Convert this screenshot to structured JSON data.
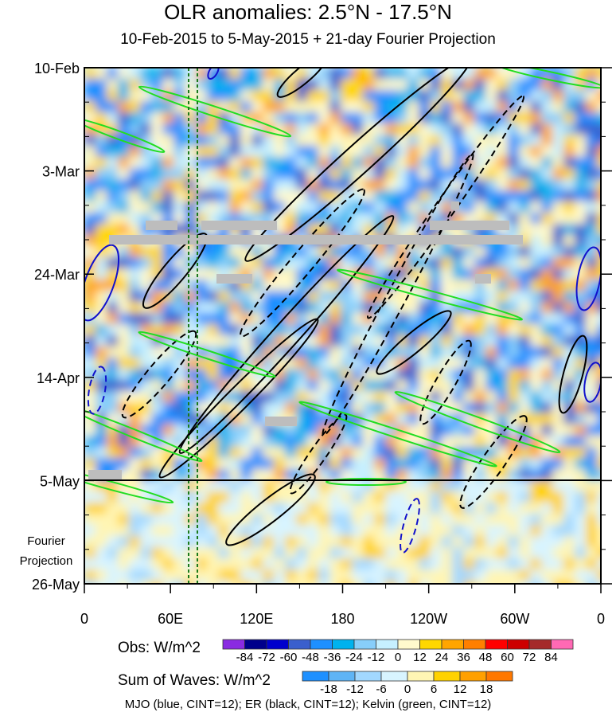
{
  "chart_data": {
    "type": "heatmap",
    "title": "OLR anomalies: 2.5°N - 17.5°N",
    "subtitle": "10-Feb-2015 to 5-May-2015 + 21-day Fourier Projection",
    "y_ticks": [
      "10-Feb",
      "3-Mar",
      "24-Mar",
      "14-Apr",
      "5-May",
      "26-May"
    ],
    "y_annotation_lines": [
      "Fourier",
      "Projection"
    ],
    "x_ticks": [
      "0",
      "60E",
      "120E",
      "180",
      "120W",
      "60W",
      "0"
    ],
    "x_range_deg_east": [
      0,
      360
    ],
    "time_range_days": [
      0,
      105
    ],
    "observation_end": "5-May",
    "obs_colorbar": {
      "title": "Obs: W/m^2",
      "levels": [
        "-84",
        "-72",
        "-60",
        "-48",
        "-36",
        "-24",
        "-12",
        "0",
        "12",
        "24",
        "36",
        "48",
        "60",
        "72",
        "84"
      ],
      "colors": [
        "#8a2be2",
        "#00008b",
        "#0000cd",
        "#3a5fcd",
        "#1e90ff",
        "#00b2ee",
        "#87cefa",
        "#c6f0ff",
        "#fffacd",
        "#ffd700",
        "#ffa500",
        "#ff7f00",
        "#ff0000",
        "#cd0000",
        "#a52a2a",
        "#ff69b4"
      ]
    },
    "waves_colorbar": {
      "title": "Sum of Waves: W/m^2",
      "levels": [
        "-18",
        "-12",
        "-6",
        "0",
        "6",
        "12",
        "18"
      ],
      "colors": [
        "#1e90ff",
        "#5fb4f5",
        "#a2d8ff",
        "#d8f4ff",
        "#fff5b4",
        "#ffd200",
        "#ffa000",
        "#ff7800"
      ]
    },
    "legend": "MJO (blue, CINT=12); ER (black, CINT=12); Kelvin (green, CINT=12)"
  }
}
